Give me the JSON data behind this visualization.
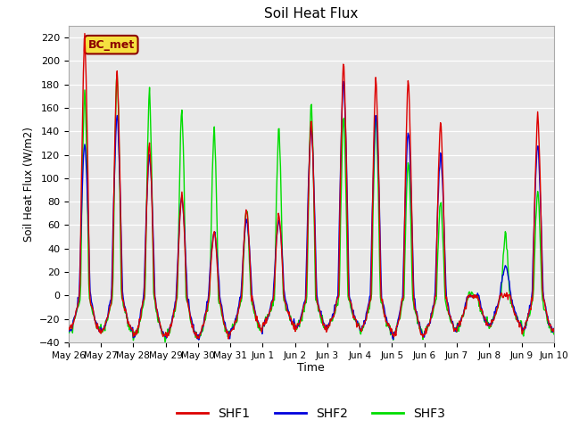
{
  "title": "Soil Heat Flux",
  "ylabel": "Soil Heat Flux (W/m2)",
  "xlabel": "Time",
  "ylim": [
    -40,
    230
  ],
  "yticks": [
    -40,
    -20,
    0,
    20,
    40,
    60,
    80,
    100,
    120,
    140,
    160,
    180,
    200,
    220
  ],
  "fig_bg_color": "#ffffff",
  "axes_bg_color": "#e8e8e8",
  "line_colors": {
    "SHF1": "#dd0000",
    "SHF2": "#0000dd",
    "SHF3": "#00dd00"
  },
  "line_widths": {
    "SHF1": 1.0,
    "SHF2": 1.0,
    "SHF3": 1.0
  },
  "annotation_text": "BC_met",
  "xtick_labels": [
    "May 26",
    "May 27",
    "May 28",
    "May 29",
    "May 30",
    "May 31",
    "Jun 1",
    "Jun 2",
    "Jun 3",
    "Jun 4",
    "Jun 5",
    "Jun 6",
    "Jun 7",
    "Jun 8",
    "Jun 9",
    "Jun 10"
  ],
  "num_days": 15
}
